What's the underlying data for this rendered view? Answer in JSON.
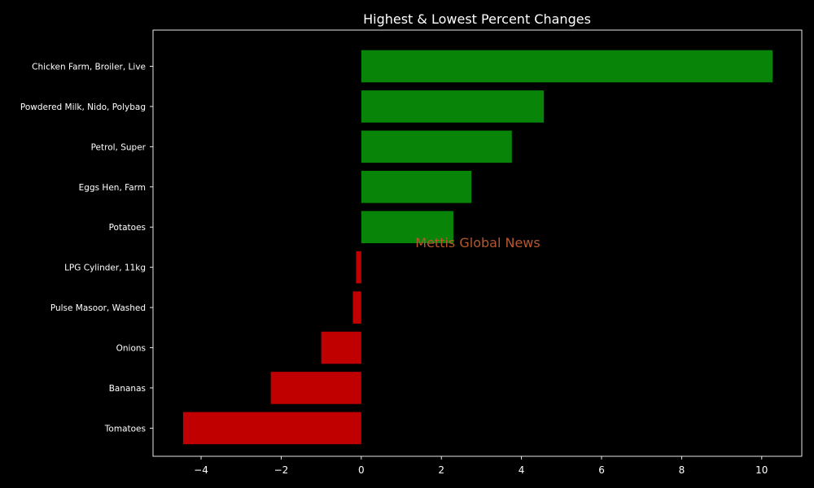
{
  "chart_data": {
    "type": "bar",
    "orientation": "horizontal",
    "title": "Highest & Lowest Percent Changes",
    "xlabel": "",
    "ylabel": "",
    "categories": [
      "Chicken Farm, Broiler, Live",
      "Powdered Milk, Nido, Polybag",
      "Petrol, Super",
      "Eggs Hen, Farm",
      "Potatoes",
      "LPG Cylinder, 11kg",
      "Pulse Masoor, Washed",
      "Onions",
      "Bananas",
      "Tomatoes"
    ],
    "values": [
      10.27,
      4.56,
      3.76,
      2.75,
      2.3,
      -0.13,
      -0.21,
      -1.0,
      -2.26,
      -4.45
    ],
    "xlim": [
      -5.2,
      11.0
    ],
    "xticks": [
      -4,
      -2,
      0,
      2,
      4,
      6,
      8,
      10
    ],
    "xtick_labels": [
      "−4",
      "−2",
      "0",
      "2",
      "4",
      "6",
      "8",
      "10"
    ],
    "grid": false,
    "colors": {
      "positive": "#088408",
      "negative": "#c00000",
      "background": "#000000",
      "text": "#ffffff"
    },
    "watermark": "Mettis Global News"
  }
}
